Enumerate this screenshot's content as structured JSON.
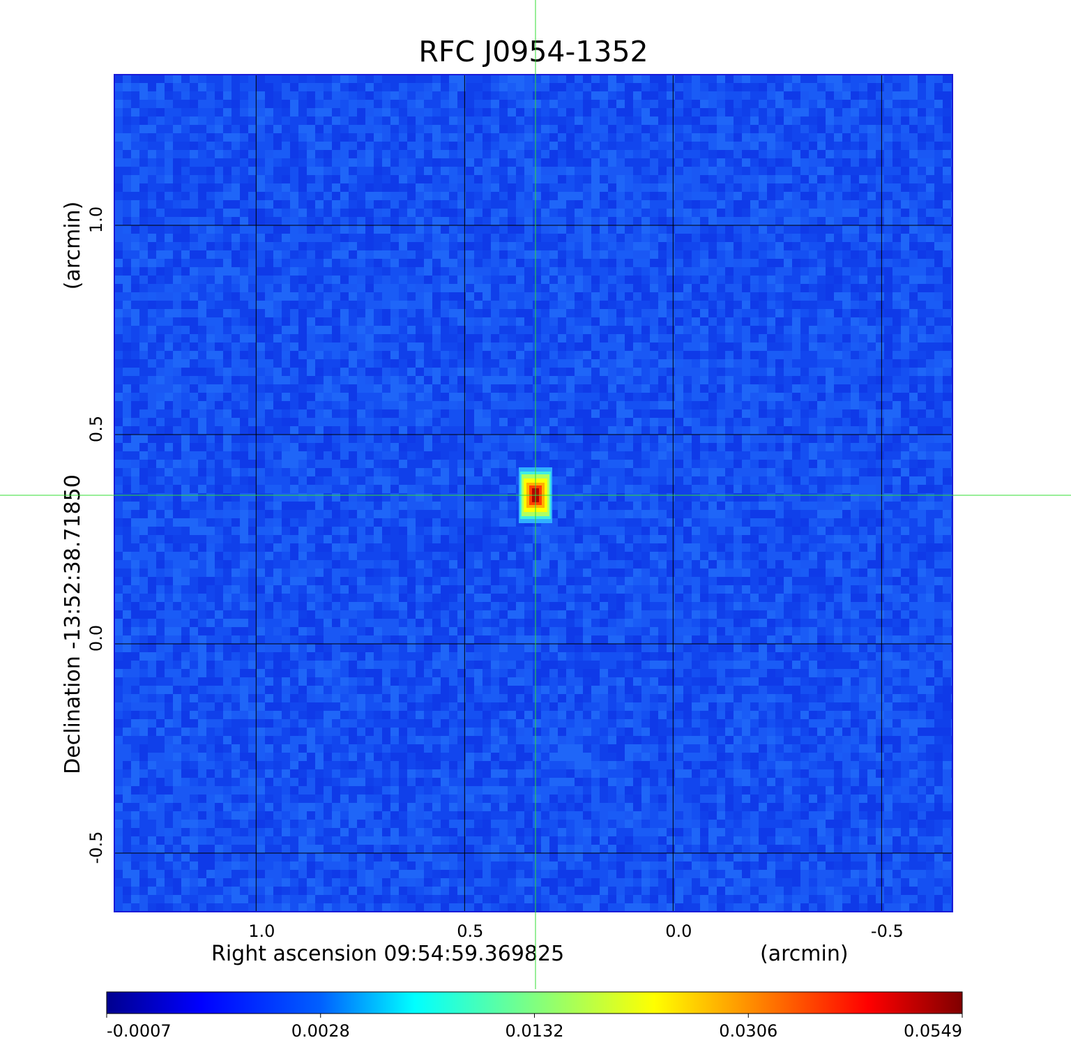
{
  "chart_data": {
    "type": "heatmap",
    "title": "RFC J0954-1352",
    "xlabel": "Right ascension  09:54:59.369825",
    "xunit": "(arcmin)",
    "ylabel": "Declination  -13:52:38.71850",
    "yunit": "(arcmin)",
    "x_ticks": [
      "1.0",
      "0.5",
      "0.0",
      "-0.5"
    ],
    "x_tick_values": [
      1.0,
      0.5,
      0.0,
      -0.5
    ],
    "y_ticks": [
      "1.0",
      "0.5",
      "0.0",
      "-0.5"
    ],
    "y_tick_values": [
      1.0,
      0.5,
      0.0,
      -0.5
    ],
    "xlim": [
      1.34,
      -0.67
    ],
    "ylim": [
      -0.64,
      1.36
    ],
    "grid": true,
    "crosshair": {
      "x": 0.33,
      "y": 0.355,
      "color": "#33dd33"
    },
    "source": {
      "x": 0.33,
      "y": 0.355,
      "peak": 0.0549
    },
    "background_level": -0.0007,
    "colorbar": {
      "colormap": "jet",
      "ticks": [
        "-0.0007",
        "0.0028",
        "0.0132",
        "0.0306",
        "0.0549"
      ],
      "tick_values": [
        -0.0007,
        0.0028,
        0.0132,
        0.0306,
        0.0549
      ]
    }
  },
  "colors": {
    "title": "#1010d0",
    "frame": "#1a1ad8",
    "grid": "#000000",
    "crosshair": "#33dd33"
  }
}
